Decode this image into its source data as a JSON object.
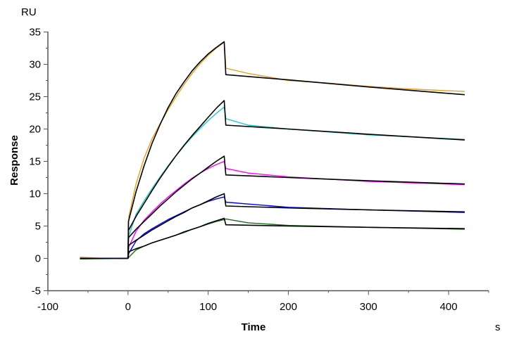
{
  "chart_data": {
    "type": "line",
    "title": "",
    "xlabel": "Time",
    "xunit": "s",
    "ylabel": "Response",
    "yunit": "RU",
    "xlim": [
      -100,
      450
    ],
    "ylim": [
      -5,
      35
    ],
    "xticks": [
      -100,
      0,
      100,
      200,
      300,
      400
    ],
    "yticks": [
      -5,
      0,
      5,
      10,
      15,
      20,
      25,
      30,
      35
    ],
    "grid": false,
    "legend": "none",
    "series": [
      {
        "role": "data",
        "color": "#e8a020",
        "points": [
          [
            -60,
            0.2
          ],
          [
            -30,
            0
          ],
          [
            -1,
            0
          ],
          [
            0,
            0.5
          ],
          [
            1,
            6.5
          ],
          [
            10,
            11.5
          ],
          [
            20,
            15.5
          ],
          [
            30,
            18.5
          ],
          [
            40,
            20.8
          ],
          [
            50,
            23
          ],
          [
            60,
            25
          ],
          [
            70,
            26.9
          ],
          [
            80,
            28.6
          ],
          [
            90,
            30.1
          ],
          [
            100,
            31.4
          ],
          [
            110,
            32.5
          ],
          [
            120,
            33.4
          ],
          [
            122,
            29.4
          ],
          [
            150,
            28.6
          ],
          [
            200,
            27.5
          ],
          [
            250,
            27.1
          ],
          [
            300,
            26.6
          ],
          [
            350,
            26.2
          ],
          [
            420,
            25.8
          ]
        ]
      },
      {
        "role": "data",
        "color": "#20c8c8",
        "points": [
          [
            -60,
            0
          ],
          [
            -1,
            0
          ],
          [
            0,
            0.3
          ],
          [
            1,
            3.5
          ],
          [
            10,
            6.8
          ],
          [
            20,
            8.9
          ],
          [
            30,
            10.8
          ],
          [
            40,
            12.6
          ],
          [
            50,
            14.3
          ],
          [
            60,
            15.9
          ],
          [
            70,
            17.4
          ],
          [
            80,
            18.8
          ],
          [
            90,
            20.1
          ],
          [
            100,
            21.3
          ],
          [
            110,
            22.4
          ],
          [
            120,
            23.4
          ],
          [
            122,
            21.6
          ],
          [
            150,
            20.6
          ],
          [
            200,
            20
          ],
          [
            300,
            19.1
          ],
          [
            420,
            18.4
          ]
        ]
      },
      {
        "role": "data",
        "color": "#ff00ff",
        "points": [
          [
            -60,
            0
          ],
          [
            -1,
            0
          ],
          [
            0,
            0.2
          ],
          [
            1,
            1.8
          ],
          [
            10,
            4.2
          ],
          [
            20,
            5.9
          ],
          [
            30,
            7.2
          ],
          [
            40,
            8.4
          ],
          [
            50,
            9.5
          ],
          [
            60,
            10.5
          ],
          [
            70,
            11.5
          ],
          [
            80,
            12.4
          ],
          [
            90,
            13.2
          ],
          [
            100,
            13.9
          ],
          [
            110,
            14.5
          ],
          [
            120,
            15
          ],
          [
            122,
            13.9
          ],
          [
            150,
            13.2
          ],
          [
            200,
            12.6
          ],
          [
            300,
            11.9
          ],
          [
            420,
            11.4
          ]
        ]
      },
      {
        "role": "data",
        "color": "#0000ff",
        "points": [
          [
            -60,
            0
          ],
          [
            -1,
            0
          ],
          [
            0,
            0.1
          ],
          [
            1,
            0.8
          ],
          [
            10,
            2.7
          ],
          [
            20,
            3.8
          ],
          [
            30,
            4.6
          ],
          [
            40,
            5.3
          ],
          [
            50,
            6
          ],
          [
            60,
            6.6
          ],
          [
            70,
            7.2
          ],
          [
            80,
            7.8
          ],
          [
            90,
            8.3
          ],
          [
            100,
            8.8
          ],
          [
            110,
            9.2
          ],
          [
            120,
            9.5
          ],
          [
            122,
            8.7
          ],
          [
            150,
            8.4
          ],
          [
            200,
            7.9
          ],
          [
            300,
            7.5
          ],
          [
            420,
            7.1
          ]
        ]
      },
      {
        "role": "data",
        "color": "#1a6e1a",
        "points": [
          [
            -60,
            -0.1
          ],
          [
            -1,
            0
          ],
          [
            0,
            0
          ],
          [
            1,
            0.2
          ],
          [
            10,
            1.3
          ],
          [
            20,
            1.9
          ],
          [
            30,
            2.4
          ],
          [
            40,
            2.8
          ],
          [
            50,
            3.2
          ],
          [
            60,
            3.6
          ],
          [
            70,
            4
          ],
          [
            80,
            4.5
          ],
          [
            90,
            4.9
          ],
          [
            100,
            5.3
          ],
          [
            110,
            5.7
          ],
          [
            120,
            6
          ],
          [
            122,
            6.1
          ],
          [
            150,
            5.5
          ],
          [
            200,
            5.1
          ],
          [
            300,
            4.8
          ],
          [
            420,
            4.5
          ]
        ]
      },
      {
        "role": "fit",
        "color": "#000000",
        "points": [
          [
            -60,
            0
          ],
          [
            0,
            0
          ],
          [
            0.5,
            5.7
          ],
          [
            10,
            10.3
          ],
          [
            20,
            14.3
          ],
          [
            30,
            17.8
          ],
          [
            40,
            20.7
          ],
          [
            50,
            23.3
          ],
          [
            60,
            25.5
          ],
          [
            70,
            27.3
          ],
          [
            80,
            29
          ],
          [
            90,
            30.4
          ],
          [
            100,
            31.6
          ],
          [
            110,
            32.6
          ],
          [
            120,
            33.5
          ],
          [
            122,
            28.4
          ],
          [
            200,
            27.6
          ],
          [
            300,
            26.5
          ],
          [
            420,
            25.3
          ]
        ]
      },
      {
        "role": "fit",
        "color": "#000000",
        "points": [
          [
            0,
            0
          ],
          [
            0.5,
            4.3
          ],
          [
            10,
            6.5
          ],
          [
            20,
            8.5
          ],
          [
            30,
            10.5
          ],
          [
            40,
            12.4
          ],
          [
            50,
            14.2
          ],
          [
            60,
            15.9
          ],
          [
            70,
            17.5
          ],
          [
            80,
            19
          ],
          [
            90,
            20.4
          ],
          [
            100,
            21.8
          ],
          [
            110,
            23.2
          ],
          [
            120,
            24.4
          ],
          [
            122,
            20.6
          ],
          [
            200,
            20
          ],
          [
            300,
            19.2
          ],
          [
            420,
            18.3
          ]
        ]
      },
      {
        "role": "fit",
        "color": "#000000",
        "points": [
          [
            0,
            0
          ],
          [
            0.5,
            3.2
          ],
          [
            10,
            4.5
          ],
          [
            20,
            5.7
          ],
          [
            30,
            6.9
          ],
          [
            40,
            8.1
          ],
          [
            50,
            9.2
          ],
          [
            60,
            10.3
          ],
          [
            70,
            11.3
          ],
          [
            80,
            12.3
          ],
          [
            90,
            13.2
          ],
          [
            100,
            14.1
          ],
          [
            110,
            15
          ],
          [
            120,
            15.8
          ],
          [
            122,
            12.9
          ],
          [
            200,
            12.5
          ],
          [
            300,
            12
          ],
          [
            420,
            11.5
          ]
        ]
      },
      {
        "role": "fit",
        "color": "#000000",
        "points": [
          [
            0,
            0
          ],
          [
            0.5,
            2
          ],
          [
            10,
            2.8
          ],
          [
            20,
            3.6
          ],
          [
            30,
            4.4
          ],
          [
            40,
            5.1
          ],
          [
            50,
            5.8
          ],
          [
            60,
            6.5
          ],
          [
            70,
            7.1
          ],
          [
            80,
            7.8
          ],
          [
            90,
            8.3
          ],
          [
            100,
            8.9
          ],
          [
            110,
            9.5
          ],
          [
            120,
            10
          ],
          [
            122,
            8.1
          ],
          [
            200,
            7.8
          ],
          [
            300,
            7.5
          ],
          [
            420,
            7.2
          ]
        ]
      },
      {
        "role": "fit",
        "color": "#000000",
        "points": [
          [
            0,
            0
          ],
          [
            0.5,
            1
          ],
          [
            10,
            1.5
          ],
          [
            20,
            1.9
          ],
          [
            30,
            2.4
          ],
          [
            40,
            2.8
          ],
          [
            50,
            3.2
          ],
          [
            60,
            3.6
          ],
          [
            70,
            4.1
          ],
          [
            80,
            4.5
          ],
          [
            90,
            4.9
          ],
          [
            100,
            5.4
          ],
          [
            110,
            5.8
          ],
          [
            120,
            6.2
          ],
          [
            122,
            5.2
          ],
          [
            200,
            5
          ],
          [
            300,
            4.8
          ],
          [
            420,
            4.6
          ]
        ]
      }
    ]
  }
}
